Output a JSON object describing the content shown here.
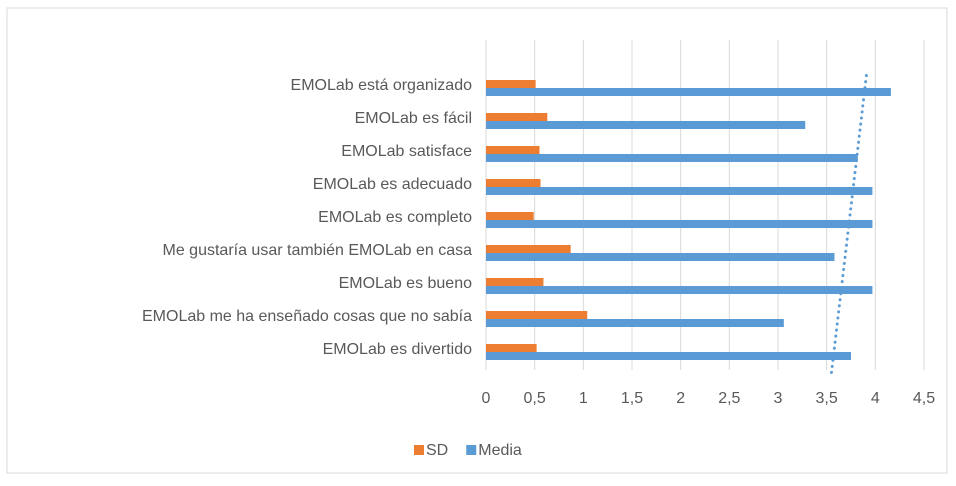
{
  "chart_data": {
    "type": "hbar",
    "categories": [
      "EMOLab está organizado",
      "EMOLab es fácil",
      "EMOLab satisface",
      "EMOLab es adecuado",
      "EMOLab es completo",
      "Me gustaría usar también EMOLab en casa",
      "EMOLab es bueno",
      "EMOLab me ha enseñado cosas que no sabía",
      "EMOLab es divertido"
    ],
    "series": [
      {
        "name": "SD",
        "color": "#ed7d31",
        "values": [
          0.51,
          0.63,
          0.55,
          0.56,
          0.49,
          0.87,
          0.59,
          1.04,
          0.52
        ]
      },
      {
        "name": "Media",
        "color": "#5b9bd5",
        "values": [
          4.16,
          3.28,
          3.82,
          3.97,
          3.97,
          3.58,
          3.97,
          3.06,
          3.75
        ],
        "trendline": "linear"
      }
    ],
    "xlim": [
      0,
      4.5
    ],
    "xticks": [
      0,
      {
        "value": 0.5,
        "label": "0,5"
      },
      1,
      {
        "value": 1.5,
        "label": "1,5"
      },
      2,
      {
        "value": 2.5,
        "label": "2,5"
      },
      3,
      {
        "value": 3.5,
        "label": "3,5"
      },
      4,
      {
        "value": 4.5,
        "label": "4,5"
      }
    ],
    "grid": true,
    "legend": "bottom"
  }
}
